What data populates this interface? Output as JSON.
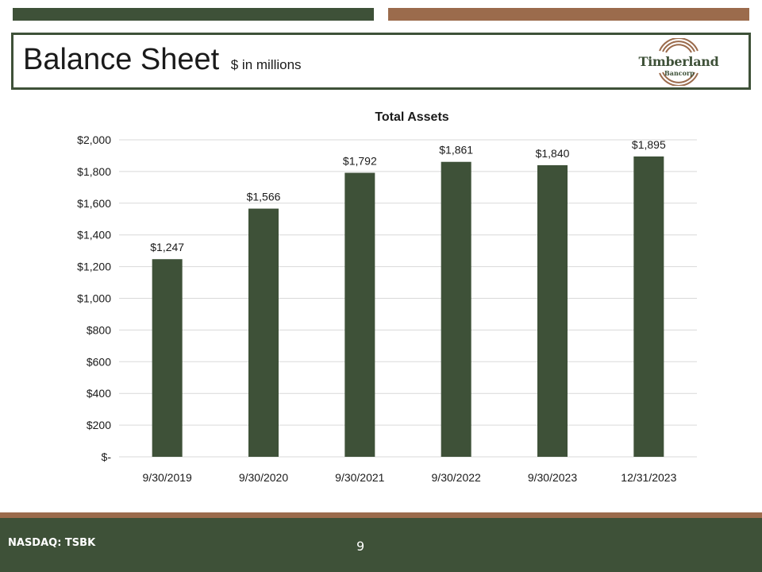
{
  "header": {
    "title": "Balance Sheet",
    "subtitle": "$ in millions",
    "logo_name": "Timberland",
    "logo_sub": "Bancorp"
  },
  "footer": {
    "ticker": "NASDAQ: TSBK",
    "page_number": "9"
  },
  "colors": {
    "green": "#3e5138",
    "brown": "#9b6b4c"
  },
  "chart_data": {
    "type": "bar",
    "title": "Total Assets",
    "categories": [
      "9/30/2019",
      "9/30/2020",
      "9/30/2021",
      "9/30/2022",
      "9/30/2023",
      "12/31/2023"
    ],
    "values": [
      1247,
      1566,
      1792,
      1861,
      1840,
      1895
    ],
    "value_labels": [
      "$1,247",
      "$1,566",
      "$1,792",
      "$1,861",
      "$1,840",
      "$1,895"
    ],
    "yticks": [
      0,
      200,
      400,
      600,
      800,
      1000,
      1200,
      1400,
      1600,
      1800,
      2000
    ],
    "ytick_labels": [
      "$-",
      "$200",
      "$400",
      "$600",
      "$800",
      "$1,000",
      "$1,200",
      "$1,400",
      "$1,600",
      "$1,800",
      "$2,000"
    ],
    "ylim": [
      0,
      2000
    ],
    "grid": true,
    "bar_color": "#3e5138"
  }
}
